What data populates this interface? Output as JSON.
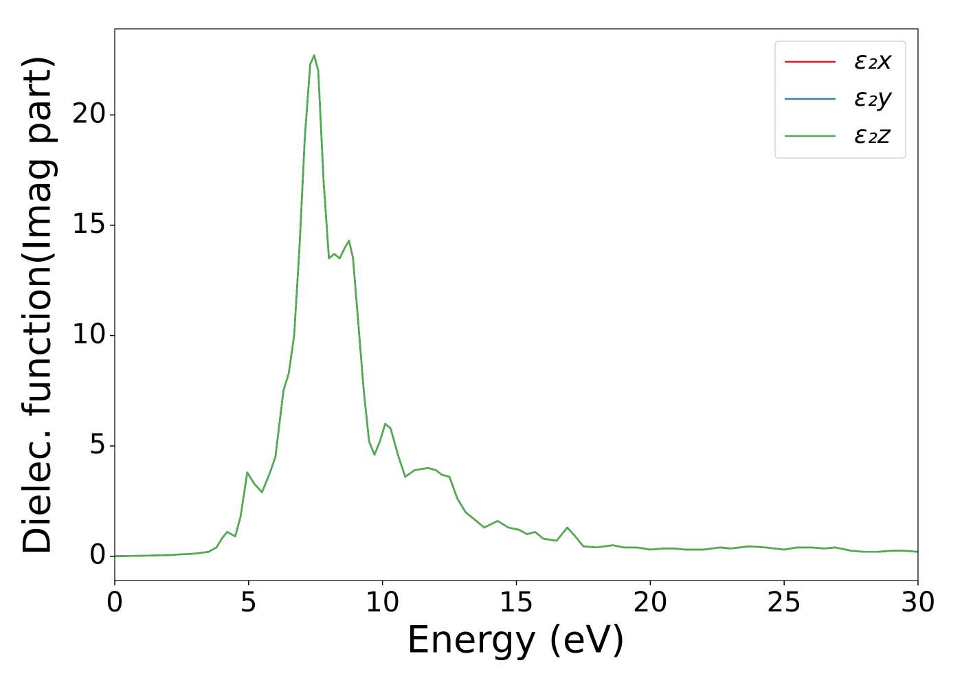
{
  "chart_data": {
    "type": "line",
    "xlabel": "Energy (eV)",
    "ylabel": "Dielec. function(Imag part)",
    "xlim": [
      0,
      30
    ],
    "ylim": [
      -1.1,
      23.9
    ],
    "xticks": [
      0,
      5,
      10,
      15,
      20,
      25,
      30
    ],
    "yticks": [
      0,
      5,
      10,
      15,
      20
    ],
    "legend": "upper right",
    "x": [
      0,
      1,
      2,
      3,
      3.5,
      3.8,
      4.0,
      4.2,
      4.5,
      4.7,
      4.95,
      5.2,
      5.5,
      5.8,
      6.0,
      6.2,
      6.3,
      6.5,
      6.7,
      6.9,
      7.1,
      7.3,
      7.45,
      7.6,
      7.8,
      8.0,
      8.2,
      8.4,
      8.6,
      8.75,
      8.9,
      9.1,
      9.3,
      9.5,
      9.7,
      9.9,
      10.1,
      10.3,
      10.6,
      10.85,
      11.2,
      11.7,
      12.0,
      12.2,
      12.5,
      12.8,
      13.1,
      13.5,
      13.8,
      14.3,
      14.7,
      15.1,
      15.4,
      15.7,
      16.0,
      16.5,
      16.9,
      17.2,
      17.5,
      18.0,
      18.6,
      19.0,
      19.5,
      20.0,
      20.5,
      20.9,
      21.3,
      22,
      22.6,
      23.0,
      23.7,
      24.3,
      25.0,
      25.5,
      26.0,
      26.5,
      26.9,
      27.5,
      28.0,
      28.5,
      29.0,
      29.5,
      30.0
    ],
    "series": [
      {
        "name": "ε₂x",
        "color": "#e41a1c",
        "values": [
          0,
          0.02,
          0.05,
          0.12,
          0.2,
          0.4,
          0.8,
          1.1,
          0.9,
          1.8,
          3.8,
          3.3,
          2.9,
          3.8,
          4.5,
          6.5,
          7.5,
          8.3,
          10,
          14,
          19,
          22.3,
          22.7,
          22,
          17,
          13.5,
          13.7,
          13.5,
          14,
          14.3,
          13.5,
          10.5,
          7.5,
          5.2,
          4.6,
          5.2,
          6.0,
          5.8,
          4.5,
          3.6,
          3.9,
          4.0,
          3.9,
          3.7,
          3.6,
          2.6,
          2.0,
          1.6,
          1.3,
          1.6,
          1.3,
          1.2,
          1.0,
          1.1,
          0.8,
          0.7,
          1.3,
          0.9,
          0.45,
          0.4,
          0.5,
          0.4,
          0.4,
          0.3,
          0.35,
          0.35,
          0.3,
          0.3,
          0.4,
          0.35,
          0.45,
          0.4,
          0.3,
          0.4,
          0.4,
          0.35,
          0.4,
          0.25,
          0.2,
          0.2,
          0.25,
          0.25,
          0.2
        ]
      },
      {
        "name": "ε₂y",
        "color": "#377eb8",
        "values": [
          0,
          0.02,
          0.05,
          0.12,
          0.2,
          0.4,
          0.8,
          1.1,
          0.9,
          1.8,
          3.8,
          3.3,
          2.9,
          3.8,
          4.5,
          6.5,
          7.5,
          8.3,
          10,
          14,
          19,
          22.3,
          22.7,
          22,
          17,
          13.5,
          13.7,
          13.5,
          14,
          14.3,
          13.5,
          10.5,
          7.5,
          5.2,
          4.6,
          5.2,
          6.0,
          5.8,
          4.5,
          3.6,
          3.9,
          4.0,
          3.9,
          3.7,
          3.6,
          2.6,
          2.0,
          1.6,
          1.3,
          1.6,
          1.3,
          1.2,
          1.0,
          1.1,
          0.8,
          0.7,
          1.3,
          0.9,
          0.45,
          0.4,
          0.5,
          0.4,
          0.4,
          0.3,
          0.35,
          0.35,
          0.3,
          0.3,
          0.4,
          0.35,
          0.45,
          0.4,
          0.3,
          0.4,
          0.4,
          0.35,
          0.4,
          0.25,
          0.2,
          0.2,
          0.25,
          0.25,
          0.2
        ]
      },
      {
        "name": "ε₂z",
        "color": "#4daf4a",
        "values": [
          0,
          0.02,
          0.05,
          0.12,
          0.2,
          0.4,
          0.8,
          1.1,
          0.9,
          1.8,
          3.8,
          3.3,
          2.9,
          3.8,
          4.5,
          6.5,
          7.5,
          8.3,
          10,
          14,
          19,
          22.3,
          22.7,
          22,
          17,
          13.5,
          13.7,
          13.5,
          14,
          14.3,
          13.5,
          10.5,
          7.5,
          5.2,
          4.6,
          5.2,
          6.0,
          5.8,
          4.5,
          3.6,
          3.9,
          4.0,
          3.9,
          3.7,
          3.6,
          2.6,
          2.0,
          1.6,
          1.3,
          1.6,
          1.3,
          1.2,
          1.0,
          1.1,
          0.8,
          0.7,
          1.3,
          0.9,
          0.45,
          0.4,
          0.5,
          0.4,
          0.4,
          0.3,
          0.35,
          0.35,
          0.3,
          0.3,
          0.4,
          0.35,
          0.45,
          0.4,
          0.3,
          0.4,
          0.4,
          0.35,
          0.4,
          0.25,
          0.2,
          0.2,
          0.25,
          0.25,
          0.2
        ]
      }
    ]
  }
}
